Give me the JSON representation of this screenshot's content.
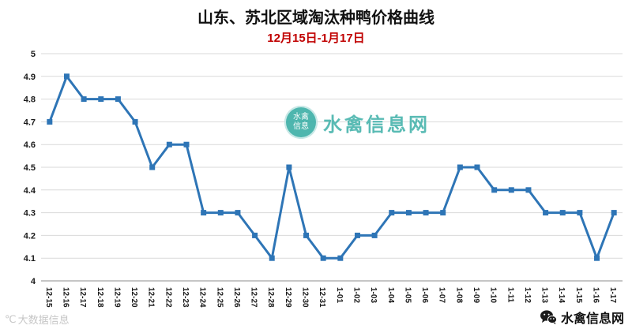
{
  "title": "山东、苏北区域淘汰种鸭价格曲线",
  "subtitle": "12月15日-1月17日",
  "watermark_center": {
    "logo_icon": "waterfowl-logo-icon",
    "logo_line1": "水禽",
    "logo_line2": "信息",
    "text": "水禽信息网",
    "color": "#4cb6ae"
  },
  "watermark_left": {
    "icon": "degree-logo-icon",
    "icon_glyph": "℃",
    "text": "大数据信息"
  },
  "footer_right": {
    "icon": "wechat-icon",
    "text": "水禽信息网"
  },
  "chart_data": {
    "type": "line",
    "title": "山东、苏北区域淘汰种鸭价格曲线",
    "subtitle": "12月15日-1月17日",
    "categories": [
      "12-15",
      "12-16",
      "12-17",
      "12-18",
      "12-19",
      "12-20",
      "12-21",
      "12-22",
      "12-23",
      "12-24",
      "12-25",
      "12-26",
      "12-27",
      "12-28",
      "12-29",
      "12-30",
      "12-31",
      "1-01",
      "1-02",
      "1-03",
      "1-04",
      "1-05",
      "1-06",
      "1-07",
      "1-08",
      "1-09",
      "1-10",
      "1-11",
      "1-12",
      "1-13",
      "1-14",
      "1-15",
      "1-16",
      "1-17"
    ],
    "values": [
      4.7,
      4.9,
      4.8,
      4.8,
      4.8,
      4.7,
      4.5,
      4.6,
      4.6,
      4.3,
      4.3,
      4.3,
      4.2,
      4.1,
      4.5,
      4.2,
      4.1,
      4.1,
      4.2,
      4.2,
      4.3,
      4.3,
      4.3,
      4.3,
      4.5,
      4.5,
      4.4,
      4.4,
      4.4,
      4.3,
      4.3,
      4.3,
      4.1,
      4.3
    ],
    "xlabel": "",
    "ylabel": "",
    "ylim": [
      4,
      5
    ],
    "ytick_step": 0.1,
    "grid": true,
    "legend": false,
    "line_color": "#2e75b6",
    "grid_color": "#d9d9d9",
    "axis_color": "#8c8c8c"
  }
}
